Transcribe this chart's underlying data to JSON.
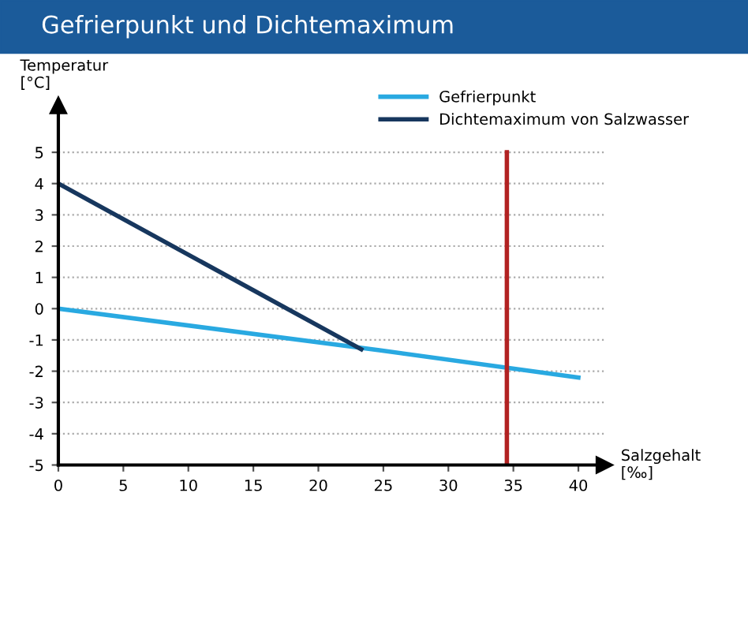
{
  "chart_data": {
    "type": "line",
    "title": "Gefrierpunkt und Dichtemaximum",
    "xlabel": "Salzgehalt\n[‰]",
    "ylabel": "Temperatur\n[°C]",
    "series": [
      {
        "name": "Gefrierpunkt",
        "color": "#29a9e1",
        "x": [
          0,
          24.7,
          40
        ],
        "values": [
          0,
          -1.33,
          -2.2
        ]
      },
      {
        "name": "Dichtemaximum von Salzwasser",
        "color": "#17375e",
        "x": [
          0,
          23.3
        ],
        "values": [
          4,
          -1.3
        ]
      }
    ],
    "xlim": [
      0,
      42
    ],
    "xticks": [
      0,
      5,
      10,
      15,
      20,
      25,
      30,
      35,
      40
    ],
    "ylim": [
      -5,
      6.5
    ],
    "yticks": [
      -5,
      -4,
      -3,
      -2,
      -1,
      0,
      1,
      2,
      3,
      4,
      5
    ],
    "ref_lines": [
      {
        "axis": "x",
        "value": 34.5,
        "color": "#b22222"
      }
    ],
    "grid": "y",
    "legend": "top right",
    "line_style": "solid"
  }
}
